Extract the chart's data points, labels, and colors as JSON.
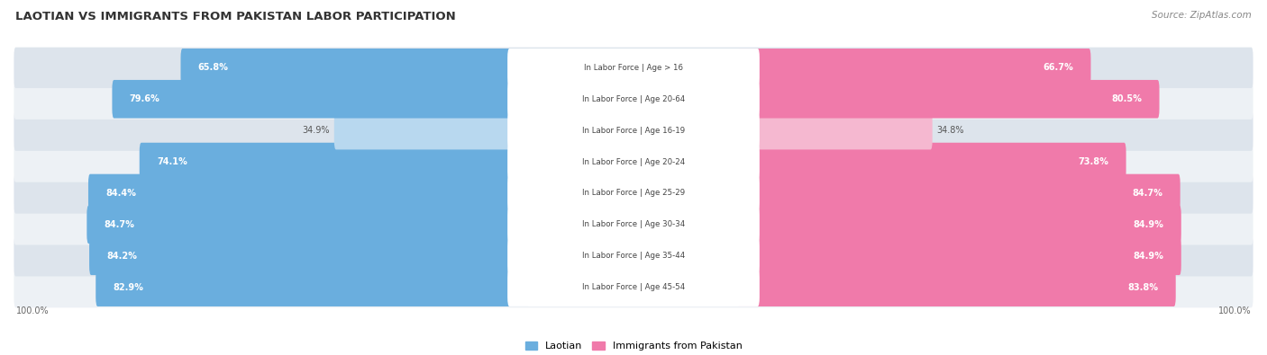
{
  "title": "LAOTIAN VS IMMIGRANTS FROM PAKISTAN LABOR PARTICIPATION",
  "source": "Source: ZipAtlas.com",
  "categories": [
    "In Labor Force | Age > 16",
    "In Labor Force | Age 20-64",
    "In Labor Force | Age 16-19",
    "In Labor Force | Age 20-24",
    "In Labor Force | Age 25-29",
    "In Labor Force | Age 30-34",
    "In Labor Force | Age 35-44",
    "In Labor Force | Age 45-54"
  ],
  "laotian_values": [
    65.8,
    79.6,
    34.9,
    74.1,
    84.4,
    84.7,
    84.2,
    82.9
  ],
  "pakistan_values": [
    66.7,
    80.5,
    34.8,
    73.8,
    84.7,
    84.9,
    84.9,
    83.8
  ],
  "laotian_color": "#6aaede",
  "laotian_color_light": "#b8d8ef",
  "pakistan_color": "#f07aaa",
  "pakistan_color_light": "#f5b8d0",
  "row_bg_dark": "#dde4ec",
  "row_bg_light": "#edf1f5",
  "max_value": 100.0,
  "figsize": [
    14.06,
    3.95
  ],
  "dpi": 100,
  "threshold_low": 50
}
